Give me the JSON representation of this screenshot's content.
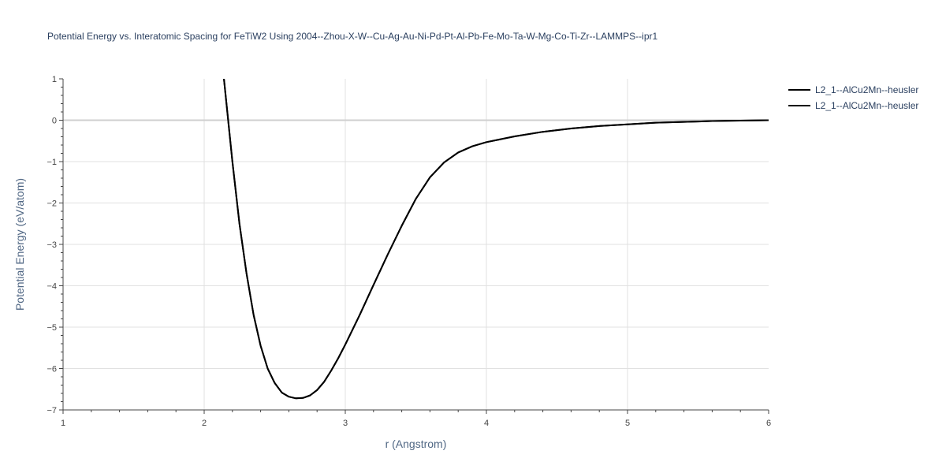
{
  "chart_data": {
    "type": "line",
    "title": "Potential Energy vs. Interatomic Spacing for FeTiW2 Using 2004--Zhou-X-W--Cu-Ag-Au-Ni-Pd-Pt-Al-Pb-Fe-Mo-Ta-W-Mg-Co-Ti-Zr--LAMMPS--ipr1",
    "xlabel": "r (Angstrom)",
    "ylabel": "Potential Energy (eV/atom)",
    "xlim": [
      1,
      6
    ],
    "ylim": [
      -7,
      1
    ],
    "x_ticks": [
      "1",
      "2",
      "3",
      "4",
      "5",
      "6"
    ],
    "y_ticks": [
      "1",
      "0",
      "−1",
      "−2",
      "−3",
      "−4",
      "−5",
      "−6",
      "−7"
    ],
    "grid": true,
    "legend_position": "top-right",
    "series": [
      {
        "name": "L2_1--AlCu2Mn--heusler",
        "color": "#000000",
        "x": [
          2.14,
          2.2,
          2.25,
          2.3,
          2.35,
          2.4,
          2.45,
          2.5,
          2.55,
          2.6,
          2.65,
          2.7,
          2.75,
          2.8,
          2.85,
          2.9,
          2.95,
          3.0,
          3.1,
          3.2,
          3.3,
          3.4,
          3.5,
          3.6,
          3.7,
          3.8,
          3.9,
          4.0,
          4.2,
          4.4,
          4.6,
          4.8,
          5.0,
          5.2,
          5.4,
          5.6,
          5.8,
          6.0
        ],
        "y": [
          1.0,
          -1.0,
          -2.5,
          -3.7,
          -4.7,
          -5.45,
          -6.0,
          -6.35,
          -6.58,
          -6.68,
          -6.72,
          -6.71,
          -6.65,
          -6.52,
          -6.32,
          -6.05,
          -5.75,
          -5.42,
          -4.72,
          -3.98,
          -3.25,
          -2.55,
          -1.9,
          -1.38,
          -1.02,
          -0.78,
          -0.63,
          -0.53,
          -0.39,
          -0.28,
          -0.2,
          -0.14,
          -0.1,
          -0.06,
          -0.04,
          -0.02,
          -0.01,
          0.0
        ]
      },
      {
        "name": "L2_1--AlCu2Mn--heusler",
        "color": "#000000",
        "x": [
          2.14,
          2.2,
          2.25,
          2.3,
          2.35,
          2.4,
          2.45,
          2.5,
          2.55,
          2.6,
          2.65,
          2.7,
          2.75,
          2.8,
          2.85,
          2.9,
          2.95,
          3.0,
          3.1,
          3.2,
          3.3,
          3.4,
          3.5,
          3.6,
          3.7,
          3.8,
          3.9,
          4.0,
          4.2,
          4.4,
          4.6,
          4.8,
          5.0,
          5.2,
          5.4,
          5.6,
          5.8,
          6.0
        ],
        "y": [
          1.0,
          -1.0,
          -2.5,
          -3.7,
          -4.7,
          -5.45,
          -6.0,
          -6.35,
          -6.58,
          -6.68,
          -6.72,
          -6.71,
          -6.65,
          -6.52,
          -6.32,
          -6.05,
          -5.75,
          -5.42,
          -4.72,
          -3.98,
          -3.25,
          -2.55,
          -1.9,
          -1.38,
          -1.02,
          -0.78,
          -0.63,
          -0.53,
          -0.39,
          -0.28,
          -0.2,
          -0.14,
          -0.1,
          -0.06,
          -0.04,
          -0.02,
          -0.01,
          0.0
        ]
      }
    ]
  }
}
